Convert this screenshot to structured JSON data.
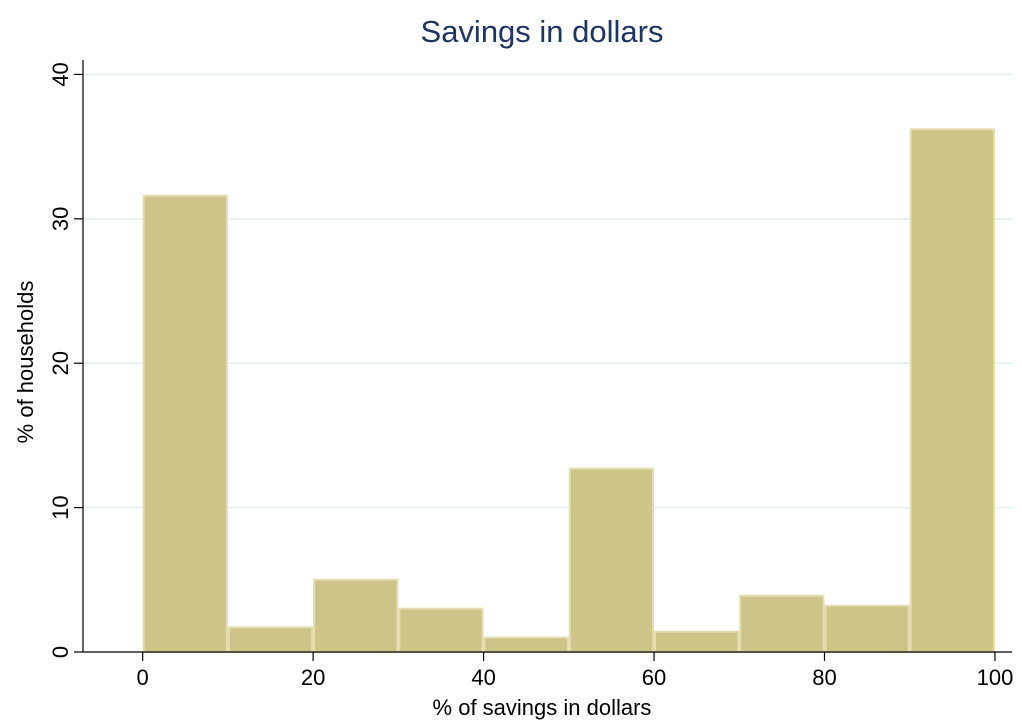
{
  "chart_data": {
    "type": "bar",
    "title": "Savings in dollars",
    "xlabel": "% of savings in dollars",
    "ylabel": "% of households",
    "bins": [
      [
        0,
        10
      ],
      [
        10,
        20
      ],
      [
        20,
        30
      ],
      [
        30,
        40
      ],
      [
        40,
        50
      ],
      [
        50,
        60
      ],
      [
        60,
        70
      ],
      [
        70,
        80
      ],
      [
        80,
        90
      ],
      [
        90,
        100
      ]
    ],
    "values": [
      31.6,
      1.7,
      5.0,
      3.0,
      1.0,
      12.7,
      1.4,
      3.9,
      3.2,
      36.2
    ],
    "xlim": [
      -7,
      102
    ],
    "ylim": [
      0,
      41
    ],
    "xticks": [
      0,
      20,
      40,
      60,
      80,
      100
    ],
    "yticks": [
      0,
      10,
      20,
      30,
      40
    ],
    "xtick_labels": [
      "0",
      "20",
      "40",
      "60",
      "80",
      "100"
    ],
    "ytick_labels": [
      "0",
      "10",
      "20",
      "30",
      "40"
    ],
    "grid": "horizontal",
    "colors": {
      "bar": "#cdc587",
      "bar_edge": "#e4dcb0",
      "grid": "#e3eeee",
      "title": "#1e3463",
      "axis": "#000000"
    }
  }
}
